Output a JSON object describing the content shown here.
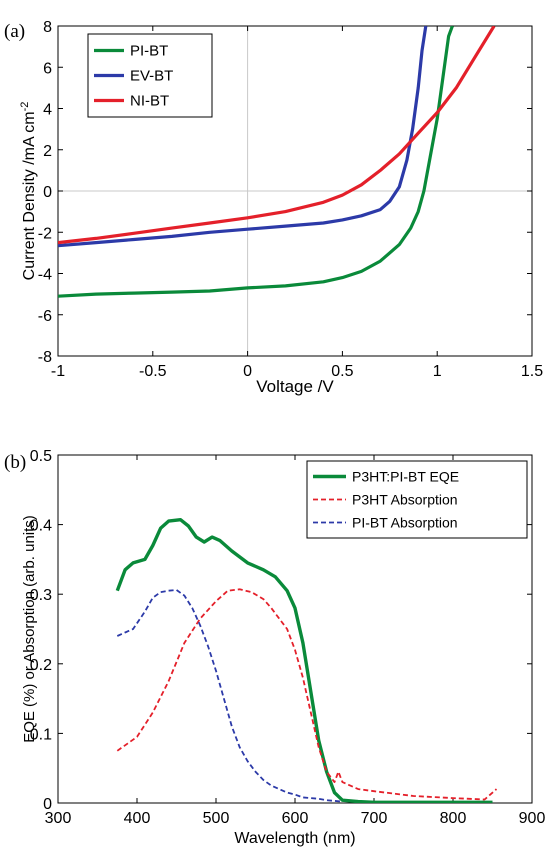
{
  "chart_data": [
    {
      "type": "line",
      "panel_label": "(a)",
      "xlabel": "Voltage /V",
      "ylabel": "Current Density /mA cm",
      "ylabel_sup": "-2",
      "xlim": [
        -1,
        1.5
      ],
      "ylim": [
        -8,
        8
      ],
      "xticks": [
        -1,
        -0.5,
        0,
        0.5,
        1,
        1.5
      ],
      "xtick_labels": [
        "-1",
        "-0.5",
        "0",
        "0.5",
        "1",
        "1.5"
      ],
      "yticks": [
        -8,
        -6,
        -4,
        -2,
        0,
        2,
        4,
        6,
        8
      ],
      "ytick_labels": [
        "-8",
        "-6",
        "-4",
        "-2",
        "0",
        "2",
        "4",
        "6",
        "8"
      ],
      "legend_position": "top-left",
      "colors": {
        "green": "#0a8a3a",
        "blue": "#2c3aa8",
        "red": "#e4202a",
        "axis_zero": "#c8c8c8"
      },
      "series": [
        {
          "name": "PI-BT",
          "color": "#0a8a3a",
          "stroke": 3.2,
          "points": [
            [
              -1,
              -5.1
            ],
            [
              -0.8,
              -5.0
            ],
            [
              -0.6,
              -4.95
            ],
            [
              -0.4,
              -4.9
            ],
            [
              -0.2,
              -4.85
            ],
            [
              0,
              -4.7
            ],
            [
              0.2,
              -4.6
            ],
            [
              0.4,
              -4.4
            ],
            [
              0.5,
              -4.2
            ],
            [
              0.6,
              -3.9
            ],
            [
              0.7,
              -3.4
            ],
            [
              0.8,
              -2.6
            ],
            [
              0.86,
              -1.8
            ],
            [
              0.9,
              -1.0
            ],
            [
              0.93,
              0
            ],
            [
              0.96,
              1.5
            ],
            [
              1.0,
              3.5
            ],
            [
              1.03,
              5.5
            ],
            [
              1.06,
              7.5
            ],
            [
              1.08,
              8
            ]
          ]
        },
        {
          "name": "EV-BT",
          "color": "#2c3aa8",
          "stroke": 3.2,
          "points": [
            [
              -1,
              -2.65
            ],
            [
              -0.8,
              -2.5
            ],
            [
              -0.6,
              -2.35
            ],
            [
              -0.4,
              -2.2
            ],
            [
              -0.2,
              -2.0
            ],
            [
              0,
              -1.85
            ],
            [
              0.2,
              -1.7
            ],
            [
              0.4,
              -1.55
            ],
            [
              0.5,
              -1.4
            ],
            [
              0.6,
              -1.2
            ],
            [
              0.7,
              -0.9
            ],
            [
              0.75,
              -0.5
            ],
            [
              0.8,
              0.2
            ],
            [
              0.84,
              1.5
            ],
            [
              0.87,
              3.0
            ],
            [
              0.9,
              5.0
            ],
            [
              0.92,
              6.8
            ],
            [
              0.94,
              8
            ]
          ]
        },
        {
          "name": "NI-BT",
          "color": "#e4202a",
          "stroke": 3.2,
          "points": [
            [
              -1,
              -2.5
            ],
            [
              -0.8,
              -2.3
            ],
            [
              -0.6,
              -2.05
            ],
            [
              -0.4,
              -1.8
            ],
            [
              -0.2,
              -1.55
            ],
            [
              0,
              -1.3
            ],
            [
              0.2,
              -1.0
            ],
            [
              0.4,
              -0.55
            ],
            [
              0.5,
              -0.2
            ],
            [
              0.6,
              0.3
            ],
            [
              0.7,
              1.0
            ],
            [
              0.8,
              1.8
            ],
            [
              0.9,
              2.8
            ],
            [
              1.0,
              3.8
            ],
            [
              1.1,
              5.0
            ],
            [
              1.2,
              6.5
            ],
            [
              1.3,
              8
            ]
          ]
        }
      ]
    },
    {
      "type": "line",
      "panel_label": "(b)",
      "xlabel": "Wavelength (nm)",
      "ylabel": "EQE (%) or Absorption (arb. units)",
      "xlim": [
        300,
        900
      ],
      "ylim": [
        0,
        0.5
      ],
      "xticks": [
        300,
        400,
        500,
        600,
        700,
        800,
        900
      ],
      "xtick_labels": [
        "300",
        "400",
        "500",
        "600",
        "700",
        "800",
        "900"
      ],
      "yticks": [
        0,
        0.1,
        0.2,
        0.3,
        0.4,
        0.5
      ],
      "ytick_labels": [
        "0",
        "0.1",
        "0.2",
        "0.3",
        "0.4",
        "0.5"
      ],
      "legend_position": "top-right",
      "series": [
        {
          "name": "P3HT:PI-BT EQE",
          "color": "#0a8a3a",
          "stroke": 3.4,
          "dash": "none",
          "points": [
            [
              375,
              0.305
            ],
            [
              385,
              0.335
            ],
            [
              395,
              0.345
            ],
            [
              410,
              0.35
            ],
            [
              420,
              0.37
            ],
            [
              430,
              0.395
            ],
            [
              440,
              0.405
            ],
            [
              455,
              0.407
            ],
            [
              465,
              0.398
            ],
            [
              475,
              0.382
            ],
            [
              485,
              0.375
            ],
            [
              495,
              0.382
            ],
            [
              505,
              0.377
            ],
            [
              520,
              0.362
            ],
            [
              540,
              0.345
            ],
            [
              560,
              0.335
            ],
            [
              575,
              0.325
            ],
            [
              590,
              0.305
            ],
            [
              600,
              0.28
            ],
            [
              610,
              0.23
            ],
            [
              620,
              0.16
            ],
            [
              630,
              0.09
            ],
            [
              640,
              0.045
            ],
            [
              650,
              0.015
            ],
            [
              660,
              0.004
            ],
            [
              680,
              0.002
            ],
            [
              700,
              0.001
            ],
            [
              750,
              0.001
            ],
            [
              800,
              0.001
            ],
            [
              850,
              0.001
            ]
          ]
        },
        {
          "name": "P3HT Absorption",
          "color": "#e4202a",
          "stroke": 1.8,
          "dash": "5,3",
          "points": [
            [
              375,
              0.075
            ],
            [
              400,
              0.095
            ],
            [
              420,
              0.13
            ],
            [
              440,
              0.175
            ],
            [
              460,
              0.23
            ],
            [
              480,
              0.265
            ],
            [
              500,
              0.29
            ],
            [
              515,
              0.305
            ],
            [
              530,
              0.307
            ],
            [
              545,
              0.303
            ],
            [
              560,
              0.293
            ],
            [
              570,
              0.28
            ],
            [
              580,
              0.265
            ],
            [
              590,
              0.25
            ],
            [
              600,
              0.22
            ],
            [
              610,
              0.18
            ],
            [
              620,
              0.13
            ],
            [
              630,
              0.08
            ],
            [
              640,
              0.045
            ],
            [
              650,
              0.03
            ],
            [
              655,
              0.045
            ],
            [
              660,
              0.03
            ],
            [
              680,
              0.02
            ],
            [
              700,
              0.017
            ],
            [
              750,
              0.01
            ],
            [
              800,
              0.007
            ],
            [
              840,
              0.005
            ],
            [
              855,
              0.02
            ]
          ]
        },
        {
          "name": "PI-BT Absorption",
          "color": "#2c3aa8",
          "stroke": 1.8,
          "dash": "5,3",
          "points": [
            [
              375,
              0.24
            ],
            [
              385,
              0.245
            ],
            [
              395,
              0.25
            ],
            [
              410,
              0.275
            ],
            [
              420,
              0.295
            ],
            [
              430,
              0.303
            ],
            [
              440,
              0.305
            ],
            [
              450,
              0.306
            ],
            [
              460,
              0.298
            ],
            [
              470,
              0.28
            ],
            [
              480,
              0.255
            ],
            [
              490,
              0.225
            ],
            [
              500,
              0.19
            ],
            [
              510,
              0.15
            ],
            [
              520,
              0.11
            ],
            [
              530,
              0.08
            ],
            [
              540,
              0.06
            ],
            [
              550,
              0.045
            ],
            [
              560,
              0.033
            ],
            [
              570,
              0.025
            ],
            [
              580,
              0.02
            ],
            [
              590,
              0.015
            ],
            [
              600,
              0.012
            ],
            [
              610,
              0.008
            ],
            [
              620,
              0.007
            ],
            [
              630,
              0.006
            ],
            [
              640,
              0.004
            ],
            [
              650,
              0.003
            ],
            [
              660,
              0.002
            ]
          ]
        }
      ]
    }
  ]
}
